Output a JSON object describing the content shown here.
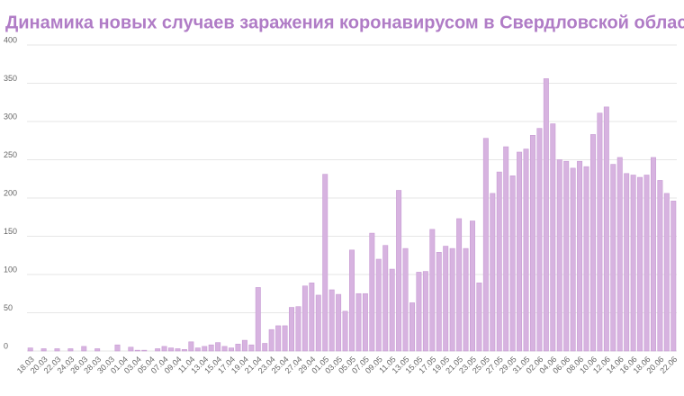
{
  "chart_data": {
    "type": "bar",
    "title": "Динамика новых случаев заражения коронавирусом в Свердловской области",
    "categories": [
      "18.03",
      null,
      "20.03",
      null,
      "22.03",
      null,
      "24.03",
      null,
      "26.03",
      null,
      "28.03",
      null,
      "30.03",
      null,
      "01.04",
      null,
      "03.04",
      null,
      "05.04",
      null,
      "07.04",
      null,
      "09.04",
      null,
      "11.04",
      null,
      "13.04",
      null,
      "15.04",
      null,
      "17.04",
      null,
      "19.04",
      null,
      "21.04",
      null,
      "23.04",
      null,
      "25.04",
      null,
      "27.04",
      null,
      "29.04",
      null,
      "01.05",
      null,
      "03.05",
      null,
      "05.05",
      null,
      "07.05",
      null,
      "09.05",
      null,
      "11.05",
      null,
      "13.05",
      null,
      "15.05",
      null,
      "17.05",
      null,
      "19.05",
      null,
      "21.05",
      null,
      "23.05",
      null,
      "25.05",
      null,
      "27.05",
      null,
      "29.05",
      null,
      "31.05",
      null,
      "02.06",
      null,
      "04.06",
      null,
      "06.06",
      null,
      "08.06",
      null,
      "10.06",
      null,
      "12.06",
      null,
      "14.06",
      null,
      "16.06",
      null,
      "18.06",
      null,
      "20.06",
      null,
      "22.06"
    ],
    "values": [
      4,
      0,
      3,
      0,
      3,
      0,
      3,
      0,
      6,
      0,
      3,
      0,
      0,
      8,
      0,
      5,
      1,
      1,
      0,
      3,
      6,
      4,
      3,
      2,
      12,
      4,
      6,
      8,
      11,
      6,
      4,
      9,
      14,
      8,
      83,
      10,
      28,
      33,
      33,
      57,
      58,
      85,
      89,
      73,
      231,
      80,
      74,
      52,
      132,
      75,
      75,
      154,
      120,
      138,
      107,
      210,
      134,
      63,
      103,
      104,
      159,
      129,
      137,
      134,
      173,
      134,
      170,
      89,
      278,
      206,
      234,
      267,
      229,
      260,
      264,
      282,
      291,
      356,
      297,
      250,
      248,
      239,
      248,
      241,
      283,
      311,
      319,
      244,
      253,
      232,
      230,
      227,
      230,
      253,
      223,
      206,
      196
    ],
    "color": "#d7b3e0",
    "ylim": [
      0,
      400
    ],
    "yticks": [
      0,
      50,
      100,
      150,
      200,
      250,
      300,
      350,
      400
    ],
    "grid": true
  }
}
